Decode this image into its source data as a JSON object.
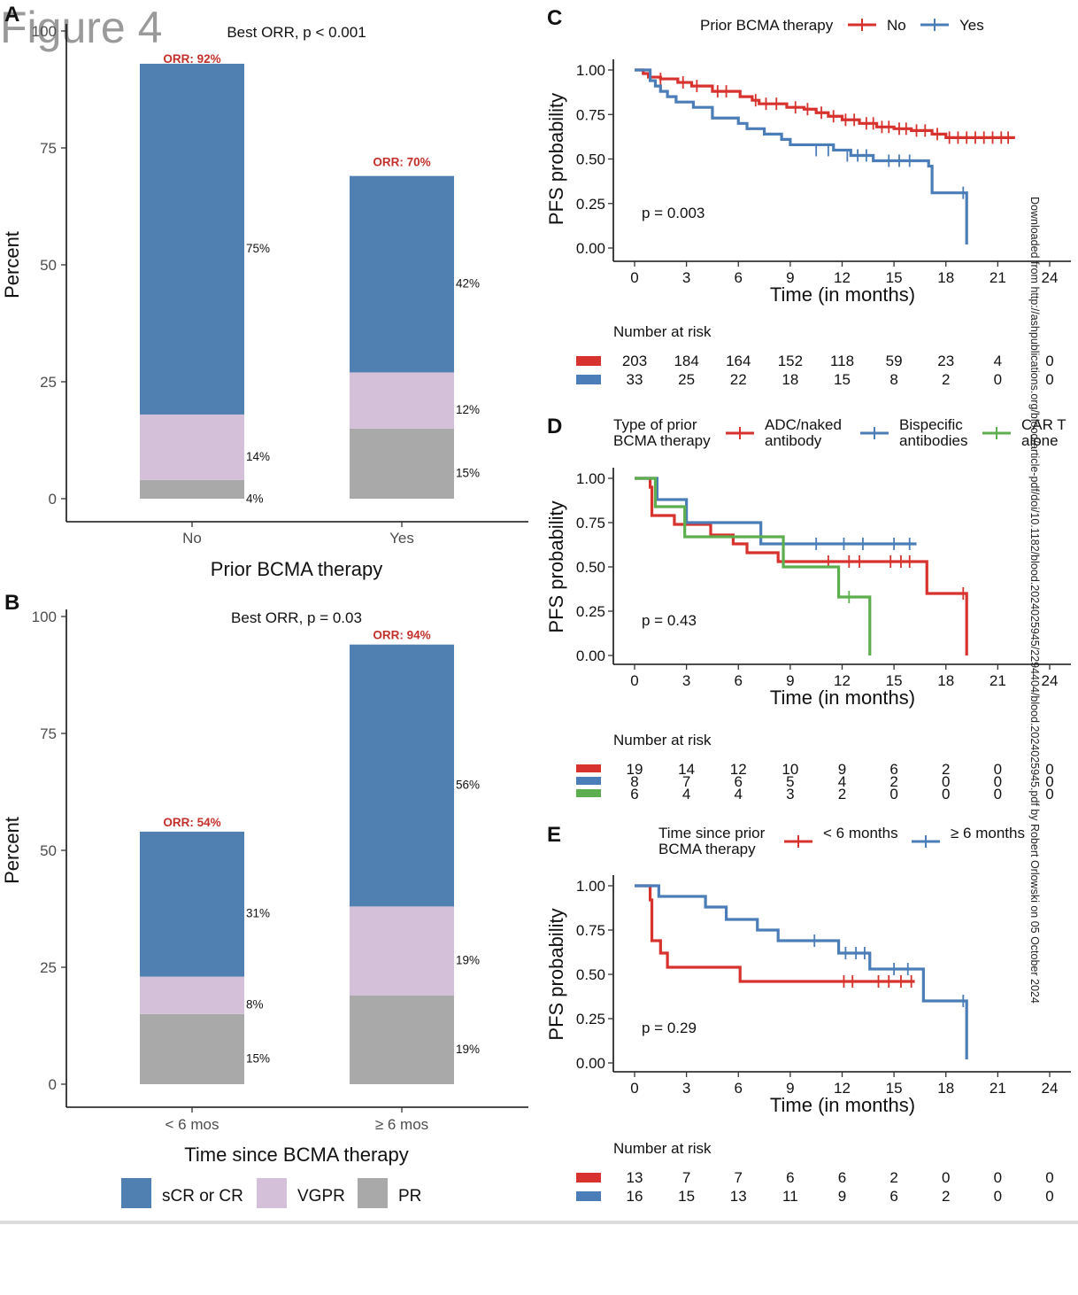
{
  "figure_label": "Figure 4",
  "download_note": "Downloaded from http://ashpublications.org/blood/article-pdf/doi/10.1182/blood.2024025945/2294404/blood.2024025945.pdf by Robert Orlowski on 05 October 2024",
  "colors": {
    "crcr": "#5080B1",
    "vgpr": "#D5C0DA",
    "pr": "#A9A9A9",
    "red": "#D7322D",
    "blue": "#4B7DB8",
    "green": "#5DAE4E",
    "orr": "#C3302A"
  },
  "chart_data": [
    {
      "id": "A",
      "type": "bar",
      "panel_label": "A",
      "title": "Best ORR, p < 0.001",
      "xlabel": "Prior BCMA therapy",
      "ylabel": "Percent",
      "ylim": [
        0,
        100
      ],
      "yticks": [
        0,
        25,
        50,
        75,
        100
      ],
      "categories": [
        "No",
        "Yes"
      ],
      "series": [
        {
          "name": "PR",
          "values": [
            4,
            15
          ],
          "labels": [
            "4%",
            "15%"
          ]
        },
        {
          "name": "VGPR",
          "values": [
            14,
            12
          ],
          "labels": [
            "14%",
            "12%"
          ]
        },
        {
          "name": "sCR or CR",
          "values": [
            75,
            42
          ],
          "labels": [
            "75%",
            "42%"
          ]
        }
      ],
      "totals": [
        92,
        70
      ],
      "orr_labels": [
        "ORR: 92%",
        "ORR: 70%"
      ]
    },
    {
      "id": "B",
      "type": "bar",
      "panel_label": "B",
      "title": "Best ORR, p = 0.03",
      "xlabel": "Time since BCMA therapy",
      "ylabel": "Percent",
      "ylim": [
        0,
        100
      ],
      "yticks": [
        0,
        25,
        50,
        75,
        100
      ],
      "categories": [
        "< 6 mos",
        "≥ 6 mos"
      ],
      "series": [
        {
          "name": "PR",
          "values": [
            15,
            19
          ],
          "labels": [
            "15%",
            "19%"
          ]
        },
        {
          "name": "VGPR",
          "values": [
            8,
            19
          ],
          "labels": [
            "8%",
            "19%"
          ]
        },
        {
          "name": "sCR or CR",
          "values": [
            31,
            56
          ],
          "labels": [
            "31%",
            "56%"
          ]
        }
      ],
      "totals": [
        54,
        94
      ],
      "orr_labels": [
        "ORR: 54%",
        "ORR: 94%"
      ],
      "legend": [
        "sCR or CR",
        "VGPR",
        "PR"
      ]
    },
    {
      "id": "C",
      "type": "line",
      "panel_label": "C",
      "legend_title": "Prior BCMA therapy",
      "xlabel": "Time (in months)",
      "ylabel": "PFS probability",
      "xlim": [
        -2,
        25
      ],
      "ylim": [
        0,
        1
      ],
      "xticks": [
        0,
        3,
        6,
        9,
        12,
        15,
        18,
        21,
        24
      ],
      "yticks": [
        "0.00",
        "0.25",
        "0.50",
        "0.75",
        "1.00"
      ],
      "pvalue": "p = 0.003",
      "series": [
        {
          "name": "No",
          "color": "red",
          "steps": [
            [
              0,
              1
            ],
            [
              0.5,
              0.98
            ],
            [
              0.8,
              0.96
            ],
            [
              1.5,
              0.95
            ],
            [
              2.5,
              0.93
            ],
            [
              3.3,
              0.91
            ],
            [
              4.5,
              0.88
            ],
            [
              6.1,
              0.85
            ],
            [
              6.8,
              0.83
            ],
            [
              7.2,
              0.81
            ],
            [
              8.8,
              0.79
            ],
            [
              9.8,
              0.78
            ],
            [
              10.5,
              0.76
            ],
            [
              11.2,
              0.74
            ],
            [
              12.0,
              0.72
            ],
            [
              13.0,
              0.7
            ],
            [
              14.0,
              0.68
            ],
            [
              15.0,
              0.67
            ],
            [
              16.0,
              0.66
            ],
            [
              17.2,
              0.64
            ],
            [
              18.0,
              0.62
            ],
            [
              22,
              0.62
            ]
          ],
          "censor": [
            [
              1.5,
              0.95
            ],
            [
              2.8,
              0.93
            ],
            [
              3.6,
              0.91
            ],
            [
              4.8,
              0.88
            ],
            [
              5.3,
              0.88
            ],
            [
              7.0,
              0.83
            ],
            [
              7.6,
              0.81
            ],
            [
              8.2,
              0.81
            ],
            [
              9.3,
              0.79
            ],
            [
              10.0,
              0.78
            ],
            [
              10.8,
              0.76
            ],
            [
              11.5,
              0.74
            ],
            [
              12.2,
              0.72
            ],
            [
              12.7,
              0.72
            ],
            [
              13.4,
              0.7
            ],
            [
              13.8,
              0.7
            ],
            [
              14.3,
              0.68
            ],
            [
              14.7,
              0.68
            ],
            [
              15.3,
              0.67
            ],
            [
              15.7,
              0.67
            ],
            [
              16.3,
              0.66
            ],
            [
              16.8,
              0.66
            ],
            [
              17.5,
              0.64
            ],
            [
              18.2,
              0.62
            ],
            [
              18.7,
              0.62
            ],
            [
              19.2,
              0.62
            ],
            [
              19.7,
              0.62
            ],
            [
              20.2,
              0.62
            ],
            [
              20.7,
              0.62
            ],
            [
              21.2,
              0.62
            ],
            [
              21.6,
              0.62
            ]
          ]
        },
        {
          "name": "Yes",
          "color": "blue",
          "steps": [
            [
              0,
              1
            ],
            [
              0.9,
              0.94
            ],
            [
              1.2,
              0.91
            ],
            [
              1.5,
              0.88
            ],
            [
              1.9,
              0.85
            ],
            [
              2.4,
              0.82
            ],
            [
              3.4,
              0.79
            ],
            [
              4.5,
              0.73
            ],
            [
              6.0,
              0.7
            ],
            [
              6.5,
              0.67
            ],
            [
              7.5,
              0.64
            ],
            [
              8.5,
              0.61
            ],
            [
              9.0,
              0.58
            ],
            [
              11.5,
              0.55
            ],
            [
              12.5,
              0.52
            ],
            [
              13.8,
              0.49
            ],
            [
              17.0,
              0.46
            ],
            [
              17.2,
              0.31
            ],
            [
              19.2,
              0.31
            ],
            [
              19.2,
              0.02
            ]
          ],
          "censor": [
            [
              10.5,
              0.55
            ],
            [
              11.2,
              0.55
            ],
            [
              12.3,
              0.52
            ],
            [
              12.9,
              0.52
            ],
            [
              13.4,
              0.52
            ],
            [
              14.7,
              0.49
            ],
            [
              15.3,
              0.49
            ],
            [
              15.9,
              0.49
            ],
            [
              19.0,
              0.31
            ]
          ]
        }
      ],
      "risk_table": {
        "title": "Number at risk",
        "times": [
          0,
          3,
          6,
          9,
          12,
          15,
          18,
          21,
          24
        ],
        "rows": [
          {
            "color": "red",
            "values": [
              "203",
              "184",
              "164",
              "152",
              "118",
              "59",
              "23",
              "4",
              "0"
            ]
          },
          {
            "color": "blue",
            "values": [
              "33",
              "25",
              "22",
              "18",
              "15",
              "8",
              "2",
              "0",
              "0"
            ]
          }
        ]
      }
    },
    {
      "id": "D",
      "type": "line",
      "panel_label": "D",
      "legend_title": [
        "Type of prior",
        "BCMA therapy"
      ],
      "legend_entries": [
        {
          "name": [
            "ADC/naked",
            "antibody"
          ],
          "color": "red"
        },
        {
          "name": [
            "Bispecific",
            "antibodies"
          ],
          "color": "blue"
        },
        {
          "name": [
            "CAR T",
            "alone"
          ],
          "color": "green"
        }
      ],
      "xlabel": "Time (in months)",
      "ylabel": "PFS probability",
      "xlim": [
        -2,
        25
      ],
      "ylim": [
        0,
        1
      ],
      "xticks": [
        0,
        3,
        6,
        9,
        12,
        15,
        18,
        21,
        24
      ],
      "yticks": [
        "0.00",
        "0.25",
        "0.50",
        "0.75",
        "1.00"
      ],
      "pvalue": "p = 0.43",
      "series": [
        {
          "name": "ADC/naked antibody",
          "color": "red",
          "steps": [
            [
              0,
              1
            ],
            [
              0.9,
              0.95
            ],
            [
              1.0,
              0.79
            ],
            [
              2.3,
              0.74
            ],
            [
              4.4,
              0.68
            ],
            [
              5.7,
              0.63
            ],
            [
              6.5,
              0.58
            ],
            [
              8.3,
              0.53
            ],
            [
              16.8,
              0.53
            ],
            [
              16.9,
              0.35
            ],
            [
              19.2,
              0.35
            ],
            [
              19.2,
              0.0
            ]
          ],
          "censor": [
            [
              11.2,
              0.53
            ],
            [
              12.4,
              0.53
            ],
            [
              13.0,
              0.53
            ],
            [
              14.8,
              0.53
            ],
            [
              15.4,
              0.53
            ],
            [
              15.9,
              0.53
            ],
            [
              19.0,
              0.35
            ]
          ]
        },
        {
          "name": "Bispecific antibodies",
          "color": "blue",
          "steps": [
            [
              0,
              1
            ],
            [
              1.3,
              0.88
            ],
            [
              3.0,
              0.75
            ],
            [
              7.3,
              0.63
            ],
            [
              16.3,
              0.63
            ]
          ],
          "censor": [
            [
              10.5,
              0.63
            ],
            [
              12.1,
              0.63
            ],
            [
              13.2,
              0.63
            ],
            [
              15.0,
              0.63
            ],
            [
              15.9,
              0.63
            ]
          ]
        },
        {
          "name": "CAR T alone",
          "color": "green",
          "steps": [
            [
              0,
              1
            ],
            [
              1.2,
              0.84
            ],
            [
              2.9,
              0.67
            ],
            [
              8.6,
              0.5
            ],
            [
              11.8,
              0.33
            ],
            [
              13.6,
              0.33
            ],
            [
              13.6,
              0.0
            ]
          ],
          "censor": [
            [
              12.4,
              0.33
            ]
          ]
        }
      ],
      "risk_table": {
        "title": "Number at risk",
        "times": [
          0,
          3,
          6,
          9,
          12,
          15,
          18,
          21,
          24
        ],
        "rows": [
          {
            "color": "red",
            "values": [
              "19",
              "14",
              "12",
              "10",
              "9",
              "6",
              "2",
              "0",
              "0"
            ]
          },
          {
            "color": "blue",
            "values": [
              "8",
              "7",
              "6",
              "5",
              "4",
              "2",
              "0",
              "0",
              "0"
            ]
          },
          {
            "color": "green",
            "values": [
              "6",
              "4",
              "4",
              "3",
              "2",
              "0",
              "0",
              "0",
              "0"
            ]
          }
        ]
      }
    },
    {
      "id": "E",
      "type": "line",
      "panel_label": "E",
      "legend_title": [
        "Time since prior",
        "BCMA therapy"
      ],
      "legend_entries": [
        {
          "name": [
            "< 6 months"
          ],
          "color": "red"
        },
        {
          "name": [
            "≥ 6 months"
          ],
          "color": "blue"
        }
      ],
      "xlabel": "Time (in months)",
      "ylabel": "PFS probability",
      "xlim": [
        -2,
        25
      ],
      "ylim": [
        0,
        1
      ],
      "xticks": [
        0,
        3,
        6,
        9,
        12,
        15,
        18,
        21,
        24
      ],
      "yticks": [
        "0.00",
        "0.25",
        "0.50",
        "0.75",
        "1.00"
      ],
      "pvalue": "p = 0.29",
      "series": [
        {
          "name": "< 6 months",
          "color": "red",
          "steps": [
            [
              0,
              1
            ],
            [
              0.9,
              0.92
            ],
            [
              1.0,
              0.77
            ],
            [
              1.0,
              0.69
            ],
            [
              1.5,
              0.62
            ],
            [
              1.9,
              0.54
            ],
            [
              6.1,
              0.46
            ],
            [
              16.2,
              0.46
            ]
          ],
          "censor": [
            [
              12.1,
              0.46
            ],
            [
              12.6,
              0.46
            ],
            [
              14.1,
              0.46
            ],
            [
              14.7,
              0.46
            ],
            [
              15.4,
              0.46
            ],
            [
              16.0,
              0.46
            ]
          ]
        },
        {
          "name": "≥ 6 months",
          "color": "blue",
          "steps": [
            [
              0,
              1
            ],
            [
              1.4,
              0.94
            ],
            [
              4.1,
              0.88
            ],
            [
              5.3,
              0.81
            ],
            [
              7.1,
              0.75
            ],
            [
              8.3,
              0.69
            ],
            [
              11.8,
              0.62
            ],
            [
              13.6,
              0.53
            ],
            [
              16.7,
              0.35
            ],
            [
              19.2,
              0.35
            ],
            [
              19.2,
              0.02
            ]
          ],
          "censor": [
            [
              10.4,
              0.69
            ],
            [
              12.2,
              0.62
            ],
            [
              12.8,
              0.62
            ],
            [
              13.3,
              0.62
            ],
            [
              15.0,
              0.53
            ],
            [
              15.8,
              0.53
            ],
            [
              19.0,
              0.35
            ]
          ]
        }
      ],
      "risk_table": {
        "title": "Number at risk",
        "times": [
          0,
          3,
          6,
          9,
          12,
          15,
          18,
          21,
          24
        ],
        "rows": [
          {
            "color": "red",
            "values": [
              "13",
              "7",
              "7",
              "6",
              "6",
              "2",
              "0",
              "0",
              "0"
            ]
          },
          {
            "color": "blue",
            "values": [
              "16",
              "15",
              "13",
              "11",
              "9",
              "6",
              "2",
              "0",
              "0"
            ]
          }
        ]
      }
    }
  ]
}
